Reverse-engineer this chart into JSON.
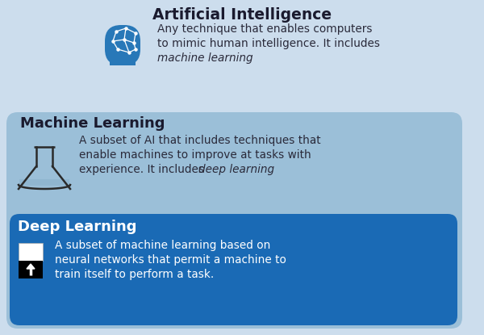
{
  "bg_color": "#ccdded",
  "ml_box_color": "#9bbfd8",
  "dl_box_color": "#1a6ab5",
  "title_ai": "Artificial Intelligence",
  "title_ml": "Machine Learning",
  "title_dl": "Deep Learning",
  "text_ai_line1": "Any technique that enables computers",
  "text_ai_line2": "to mimic human intelligence. It includes",
  "text_ai_italic": "machine learning",
  "text_ml_line1": "A subset of AI that includes techniques that",
  "text_ml_line2": "enable machines to improve at tasks with",
  "text_ml_line3": "experience. It includes ",
  "text_ml_italic": "deep learning",
  "text_dl_line1": "A subset of machine learning based on",
  "text_dl_line2": "neural networks that permit a machine to",
  "text_dl_line3": "train itself to perform a task.",
  "title_color_dark": "#1a1a2e",
  "title_color_dl": "#ffffff",
  "text_color_dark": "#2a2a3a",
  "text_color_dl": "#ffffff",
  "ai_icon_color": "#2878b8",
  "ml_flask_color": "#2a2a2a"
}
